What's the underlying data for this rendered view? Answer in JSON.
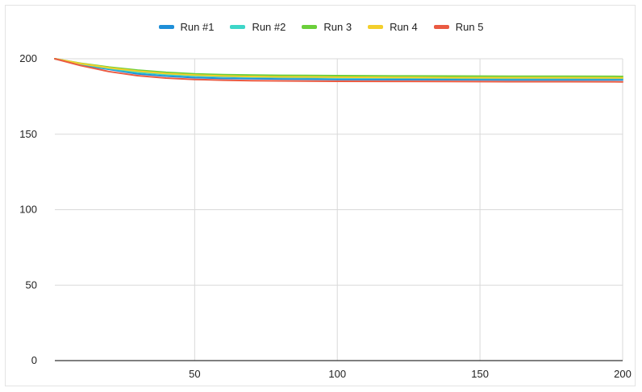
{
  "chart_data": {
    "type": "line",
    "title": "",
    "xlabel": "",
    "ylabel": "",
    "xlim": [
      1,
      200
    ],
    "ylim": [
      0,
      200
    ],
    "x_ticks": [
      50,
      100,
      150,
      200
    ],
    "y_ticks": [
      0,
      50,
      100,
      150,
      200
    ],
    "grid": true,
    "legend_position": "top",
    "x": [
      1,
      10,
      20,
      30,
      40,
      50,
      60,
      70,
      80,
      100,
      120,
      140,
      160,
      180,
      200
    ],
    "series": [
      {
        "name": "Run #1",
        "color": "#1f8fd8",
        "values": [
          200,
          196,
          193,
          190,
          188.5,
          187.5,
          187,
          186.8,
          186.6,
          186.3,
          186.2,
          186.1,
          186,
          186,
          186
        ]
      },
      {
        "name": "Run #2",
        "color": "#3ed6c8",
        "values": [
          200,
          196.5,
          193.5,
          191,
          189.5,
          188.6,
          188.1,
          187.8,
          187.6,
          187.3,
          187.2,
          187.1,
          187,
          187,
          187
        ]
      },
      {
        "name": "Run 3",
        "color": "#6bcf3a",
        "values": [
          200,
          197,
          194.5,
          192.5,
          191,
          190,
          189.5,
          189.2,
          189,
          188.8,
          188.6,
          188.5,
          188.4,
          188.4,
          188.3
        ]
      },
      {
        "name": "Run 4",
        "color": "#f3cf2c",
        "values": [
          200,
          196.8,
          194,
          191.8,
          190.2,
          189.2,
          188.6,
          188.2,
          188,
          187.8,
          187.6,
          187.5,
          187.4,
          187.4,
          187.3
        ]
      },
      {
        "name": "Run 5",
        "color": "#ea5a42",
        "values": [
          200,
          195.5,
          191.5,
          188.8,
          187.2,
          186.3,
          185.8,
          185.5,
          185.3,
          185.1,
          185,
          184.9,
          184.8,
          184.8,
          184.7
        ]
      }
    ]
  }
}
